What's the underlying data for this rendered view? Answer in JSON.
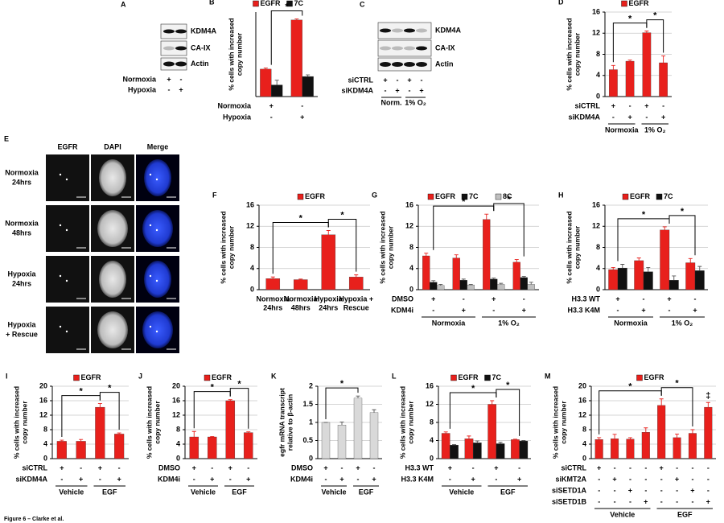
{
  "caption": "Figure 6 – Clarke et al.",
  "blots": [
    {
      "panel": "A",
      "bands": [
        "KDM4A",
        "CA-IX",
        "Actin"
      ],
      "conditions": [
        {
          "label": "Normoxia",
          "marks": [
            "+",
            "-"
          ]
        },
        {
          "label": "Hypoxia",
          "marks": [
            "-",
            "+"
          ]
        }
      ]
    },
    {
      "panel": "C",
      "bands": [
        "KDM4A",
        "CA-IX",
        "Actin"
      ],
      "conditions": [
        {
          "label": "siCTRL",
          "marks": [
            "+",
            "-",
            "+",
            "-"
          ]
        },
        {
          "label": "siKDM4A",
          "marks": [
            "-",
            "+",
            "-",
            "+"
          ]
        }
      ],
      "groups": [
        "Norm.",
        "1% O₂"
      ]
    }
  ],
  "images": {
    "panel": "E",
    "columns": [
      "EGFR",
      "DAPI",
      "Merge"
    ],
    "rows": [
      [
        "Normoxia",
        "24hrs"
      ],
      [
        "Normoxia",
        "48hrs"
      ],
      [
        "Hypoxia",
        "24hrs"
      ],
      [
        "Hypoxia",
        "+ Rescue"
      ]
    ]
  },
  "chart_data": [
    {
      "panel": "B",
      "type": "bar",
      "ylabel": [
        "% cells with increased",
        "copy number"
      ],
      "ylim": [
        0,
        16
      ],
      "series": [
        {
          "name": "EGFR",
          "color": "#e8201c",
          "values": [
            5.2,
            14.5
          ],
          "errors": [
            0.2,
            0.2
          ]
        },
        {
          "name": "7C",
          "color": "#111111",
          "values": [
            2.2,
            3.8
          ],
          "errors": [
            0.9,
            0.3
          ]
        }
      ],
      "conditions": [
        {
          "label": "Normoxia",
          "marks": [
            "+",
            "-"
          ]
        },
        {
          "label": "Hypoxia",
          "marks": [
            "-",
            "+"
          ]
        }
      ],
      "annotations": [
        {
          "text": "*",
          "between": [
            0,
            1
          ]
        }
      ]
    },
    {
      "panel": "D",
      "type": "bar",
      "ylabel": [
        "% cells with increased",
        "copy number"
      ],
      "ylim": [
        0,
        16
      ],
      "yticks": [
        0,
        4,
        8,
        12,
        16
      ],
      "grid": true,
      "series": [
        {
          "name": "EGFR",
          "color": "#e8201c",
          "values": [
            5.1,
            6.7,
            12.1,
            6.4
          ],
          "errors": [
            0.8,
            0.2,
            0.3,
            1.3
          ]
        }
      ],
      "conditions": [
        {
          "label": "siCTRL",
          "marks": [
            "+",
            "-",
            "+",
            "-"
          ]
        },
        {
          "label": "siKDM4A",
          "marks": [
            "-",
            "+",
            "-",
            "+"
          ]
        }
      ],
      "groups": [
        "Normoxia",
        "1% O₂"
      ],
      "annotations": [
        {
          "text": "*",
          "between": [
            0,
            2
          ]
        },
        {
          "text": "*",
          "between": [
            2,
            3
          ]
        }
      ]
    },
    {
      "panel": "F",
      "type": "bar",
      "ylabel": [
        "% cells with increased",
        "copy number"
      ],
      "ylim": [
        0,
        16
      ],
      "yticks": [
        0,
        4,
        8,
        12,
        16
      ],
      "grid": true,
      "categories": [
        [
          "Normoxia",
          "24hrs"
        ],
        [
          "Normoxia",
          "48hrs"
        ],
        [
          "Hypoxia",
          "24hrs"
        ],
        [
          "Hypoxia +",
          "Rescue"
        ]
      ],
      "series": [
        {
          "name": "EGFR",
          "color": "#e8201c",
          "values": [
            2.1,
            1.9,
            10.4,
            2.4
          ],
          "errors": [
            0.3,
            0.1,
            0.8,
            0.4
          ]
        }
      ],
      "annotations": [
        {
          "text": "*",
          "between": [
            0,
            2
          ]
        },
        {
          "text": "*",
          "between": [
            2,
            3
          ]
        }
      ]
    },
    {
      "panel": "G",
      "type": "bar",
      "ylabel": [
        "% cells with increased",
        "copy number"
      ],
      "ylim": [
        0,
        16
      ],
      "yticks": [
        0,
        4,
        8,
        12,
        16
      ],
      "grid": true,
      "series": [
        {
          "name": "EGFR",
          "color": "#e8201c",
          "values": [
            6.4,
            6.0,
            13.3,
            5.2
          ],
          "errors": [
            0.5,
            0.6,
            1.0,
            0.5
          ]
        },
        {
          "name": "7C",
          "color": "#111111",
          "values": [
            1.4,
            1.8,
            2.0,
            2.3
          ],
          "errors": [
            0.3,
            0.2,
            0.2,
            0.2
          ]
        },
        {
          "name": "8C",
          "color": "#bfbfbf",
          "values": [
            0.8,
            0.9,
            1.0,
            1.0
          ],
          "errors": [
            0.2,
            0.1,
            0.2,
            0.4
          ]
        }
      ],
      "conditions": [
        {
          "label": "DMSO",
          "marks": [
            "+",
            "-",
            "+",
            "-"
          ]
        },
        {
          "label": "KDM4i",
          "marks": [
            "-",
            "+",
            "-",
            "+"
          ]
        }
      ],
      "groups": [
        "Normoxia",
        "1% O₂"
      ],
      "annotations": [
        {
          "text": "*",
          "between": [
            0,
            2
          ]
        },
        {
          "text": "*",
          "between": [
            2,
            3
          ]
        }
      ]
    },
    {
      "panel": "H",
      "type": "bar",
      "ylabel": [
        "% cells with increased",
        "copy number"
      ],
      "ylim": [
        0,
        16
      ],
      "yticks": [
        0,
        4,
        8,
        12,
        16
      ],
      "grid": true,
      "series": [
        {
          "name": "EGFR",
          "color": "#e8201c",
          "values": [
            3.8,
            5.5,
            11.3,
            5.1
          ],
          "errors": [
            0.4,
            0.5,
            0.6,
            0.8
          ]
        },
        {
          "name": "7C",
          "color": "#111111",
          "values": [
            4.1,
            3.4,
            1.8,
            3.6
          ],
          "errors": [
            0.7,
            0.8,
            0.8,
            0.8
          ]
        }
      ],
      "conditions": [
        {
          "label": "H3.3 WT",
          "marks": [
            "+",
            "-",
            "+",
            "-"
          ]
        },
        {
          "label": "H3.3 K4M",
          "marks": [
            "-",
            "+",
            "-",
            "+"
          ]
        }
      ],
      "groups": [
        "Normoxia",
        "1% O₂"
      ],
      "annotations": [
        {
          "text": "*",
          "between": [
            0,
            2
          ]
        },
        {
          "text": "*",
          "between": [
            2,
            3
          ]
        }
      ]
    },
    {
      "panel": "I",
      "type": "bar",
      "ylabel": [
        "% cells with increased",
        "copy number"
      ],
      "ylim": [
        0,
        20
      ],
      "yticks": [
        0,
        4,
        8,
        12,
        16,
        20
      ],
      "grid": true,
      "series": [
        {
          "name": "EGFR",
          "color": "#e8201c",
          "values": [
            4.8,
            4.8,
            14.2,
            6.8
          ],
          "errors": [
            0.3,
            0.5,
            1.0,
            0.3
          ]
        }
      ],
      "conditions": [
        {
          "label": "siCTRL",
          "marks": [
            "+",
            "-",
            "+",
            "-"
          ]
        },
        {
          "label": "siKDM4A",
          "marks": [
            "-",
            "+",
            "-",
            "+"
          ]
        }
      ],
      "groups": [
        "Vehicle",
        "EGF"
      ],
      "annotations": [
        {
          "text": "*",
          "between": [
            0,
            2
          ]
        },
        {
          "text": "*",
          "between": [
            2,
            3
          ]
        }
      ]
    },
    {
      "panel": "J",
      "type": "bar",
      "ylabel": [
        "% cells with increased",
        "copy number"
      ],
      "ylim": [
        0,
        20
      ],
      "yticks": [
        0,
        4,
        8,
        12,
        16,
        20
      ],
      "grid": true,
      "series": [
        {
          "name": "EGFR",
          "color": "#e8201c",
          "values": [
            6.0,
            6.0,
            16.0,
            7.2
          ],
          "errors": [
            1.5,
            0.1,
            0.3,
            0.2
          ]
        }
      ],
      "conditions": [
        {
          "label": "DMSO",
          "marks": [
            "+",
            "-",
            "+",
            "-"
          ]
        },
        {
          "label": "KDM4i",
          "marks": [
            "-",
            "+",
            "-",
            "+"
          ]
        }
      ],
      "groups": [
        "Vehicle",
        "EGF"
      ],
      "annotations": [
        {
          "text": "*",
          "between": [
            0,
            2
          ]
        },
        {
          "text": "*",
          "between": [
            2,
            3
          ]
        }
      ]
    },
    {
      "panel": "K",
      "type": "bar",
      "ylabel": [
        "egfr mRNA transcript",
        "relative to β-actin"
      ],
      "ylim": [
        0,
        2
      ],
      "yticks": [
        0,
        0.5,
        1,
        1.5,
        2
      ],
      "grid": true,
      "series": [
        {
          "color": "#d9d9d9",
          "values": [
            1.0,
            0.93,
            1.67,
            1.27
          ],
          "errors": [
            0,
            0.08,
            0.06,
            0.08
          ]
        }
      ],
      "conditions": [
        {
          "label": "DMSO",
          "marks": [
            "+",
            "-",
            "+",
            "-"
          ]
        },
        {
          "label": "KDM4i",
          "marks": [
            "-",
            "+",
            "-",
            "+"
          ]
        }
      ],
      "groups": [
        "Vehicle",
        "EGF"
      ],
      "annotations": [
        {
          "text": "*",
          "between": [
            0,
            2
          ]
        }
      ]
    },
    {
      "panel": "L",
      "type": "bar",
      "ylabel": [
        "% cells with increased",
        "copy number"
      ],
      "ylim": [
        0,
        16
      ],
      "yticks": [
        0,
        4,
        8,
        12,
        16
      ],
      "grid": true,
      "series": [
        {
          "name": "EGFR",
          "color": "#e8201c",
          "values": [
            5.6,
            4.4,
            12.0,
            4.2
          ],
          "errors": [
            0.3,
            0.6,
            0.8,
            0.1
          ]
        },
        {
          "name": "7C",
          "color": "#111111",
          "values": [
            3.0,
            3.5,
            3.3,
            3.9
          ],
          "errors": [
            0.1,
            0.4,
            0.3,
            0.1
          ]
        }
      ],
      "conditions": [
        {
          "label": "H3.3 WT",
          "marks": [
            "+",
            "-",
            "+",
            "-"
          ]
        },
        {
          "label": "H3.3 K4M",
          "marks": [
            "-",
            "+",
            "-",
            "+"
          ]
        }
      ],
      "groups": [
        "Vehicle",
        "EGF"
      ],
      "annotations": [
        {
          "text": "*",
          "between": [
            0,
            2
          ]
        },
        {
          "text": "*",
          "between": [
            2,
            3
          ]
        }
      ]
    },
    {
      "panel": "M",
      "type": "bar",
      "ylabel": [
        "% cells with increased",
        "copy number"
      ],
      "ylim": [
        0,
        20
      ],
      "yticks": [
        0,
        4,
        8,
        12,
        16,
        20
      ],
      "grid": true,
      "series": [
        {
          "name": "EGFR",
          "color": "#e8201c",
          "values": [
            5.3,
            5.5,
            5.4,
            7.3,
            14.7,
            5.8,
            7.0,
            14.2
          ],
          "errors": [
            0.5,
            1.2,
            0.4,
            1.2,
            1.8,
            1.0,
            1.0,
            1.3
          ]
        }
      ],
      "conditions": [
        {
          "label": "siCTRL",
          "marks": [
            "+",
            "-",
            "-",
            "-",
            "+",
            "-",
            "-",
            "-"
          ]
        },
        {
          "label": "siKMT2A",
          "marks": [
            "-",
            "+",
            "-",
            "-",
            "-",
            "+",
            "-",
            "-"
          ]
        },
        {
          "label": "siSETD1A",
          "marks": [
            "-",
            "-",
            "+",
            "-",
            "-",
            "-",
            "+",
            "-"
          ]
        },
        {
          "label": "siSETD1B",
          "marks": [
            "-",
            "-",
            "-",
            "+",
            "-",
            "-",
            "-",
            "+"
          ]
        }
      ],
      "groups": [
        "Vehicle",
        "EGF"
      ],
      "annotations": [
        {
          "text": "*",
          "between": [
            0,
            4
          ]
        },
        {
          "text": "*",
          "between": [
            4,
            6
          ]
        },
        {
          "text": "‡",
          "between": [
            7
          ]
        }
      ]
    }
  ]
}
